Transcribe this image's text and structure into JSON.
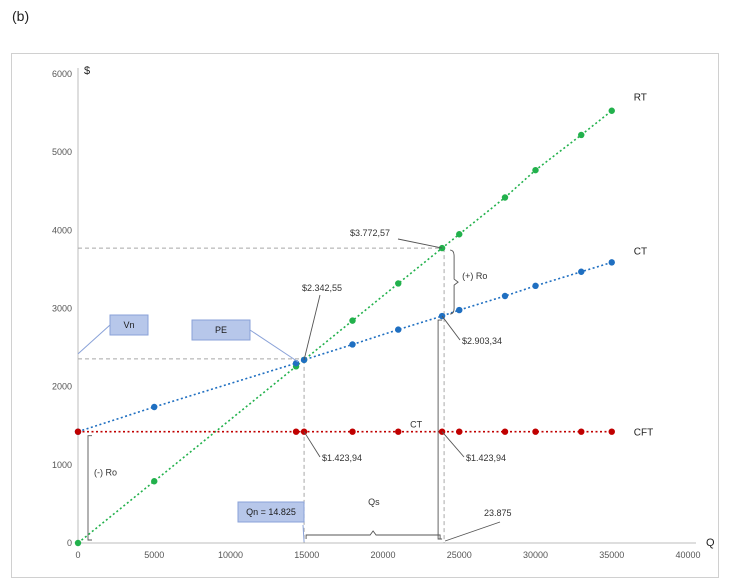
{
  "figure_label": "(b)",
  "colors": {
    "RT": "#22b14c",
    "CT": "#1f6fc1",
    "CFT": "#c00000",
    "guide": "#a8a8a8",
    "callout_fill": "#b7c7ea",
    "callout_stroke": "#8aa2d8"
  },
  "chart_data": {
    "type": "line",
    "title": "",
    "xlabel": "Q",
    "ylabel": "$",
    "xlim": [
      0,
      40000
    ],
    "ylim": [
      0,
      6000
    ],
    "x_ticks": [
      0,
      5000,
      10000,
      15000,
      20000,
      25000,
      30000,
      35000,
      40000
    ],
    "y_ticks": [
      0,
      1000,
      2000,
      3000,
      4000,
      5000,
      6000
    ],
    "grid": false,
    "series": [
      {
        "name": "RT",
        "color_key": "RT",
        "points": [
          [
            0,
            0
          ],
          [
            5000,
            790
          ],
          [
            14300,
            2260
          ],
          [
            14825,
            2342.55
          ],
          [
            18000,
            2845
          ],
          [
            21000,
            3320
          ],
          [
            23875,
            3772.57
          ],
          [
            25000,
            3950
          ],
          [
            28000,
            4420
          ],
          [
            30000,
            4770
          ],
          [
            33000,
            5220
          ],
          [
            35000,
            5530
          ]
        ]
      },
      {
        "name": "CT",
        "color_key": "CT",
        "points": [
          [
            0,
            1423.94
          ],
          [
            5000,
            1740
          ],
          [
            14300,
            2300
          ],
          [
            14825,
            2342.55
          ],
          [
            18000,
            2540
          ],
          [
            21000,
            2730
          ],
          [
            23875,
            2903.34
          ],
          [
            25000,
            2980
          ],
          [
            28000,
            3160
          ],
          [
            30000,
            3290
          ],
          [
            33000,
            3470
          ],
          [
            35000,
            3590
          ]
        ]
      },
      {
        "name": "CFT",
        "color_key": "CFT",
        "points": [
          [
            0,
            1423.94
          ],
          [
            14300,
            1423.94
          ],
          [
            14825,
            1423.94
          ],
          [
            18000,
            1423.94
          ],
          [
            21000,
            1423.94
          ],
          [
            23875,
            1423.94
          ],
          [
            25000,
            1423.94
          ],
          [
            28000,
            1423.94
          ],
          [
            30000,
            1423.94
          ],
          [
            33000,
            1423.94
          ],
          [
            35000,
            1423.94
          ]
        ]
      }
    ],
    "annotations": {
      "pe_label": "$2.342,55",
      "rt_at_qs": "$3.772,57",
      "ct_at_qs": "$2.903,34",
      "cft_at_pe": "$1.423,94",
      "cft_at_qs": "$1.423,94",
      "plus_ro": "(+) Ro",
      "minus_ro": "(-) Ro",
      "ct_brace": "CT",
      "qs_brace": "Qs",
      "qs_value": "23.875",
      "qn_box": "Qn = 14.825",
      "vn_box": "Vn",
      "pe_box": "PE"
    }
  }
}
